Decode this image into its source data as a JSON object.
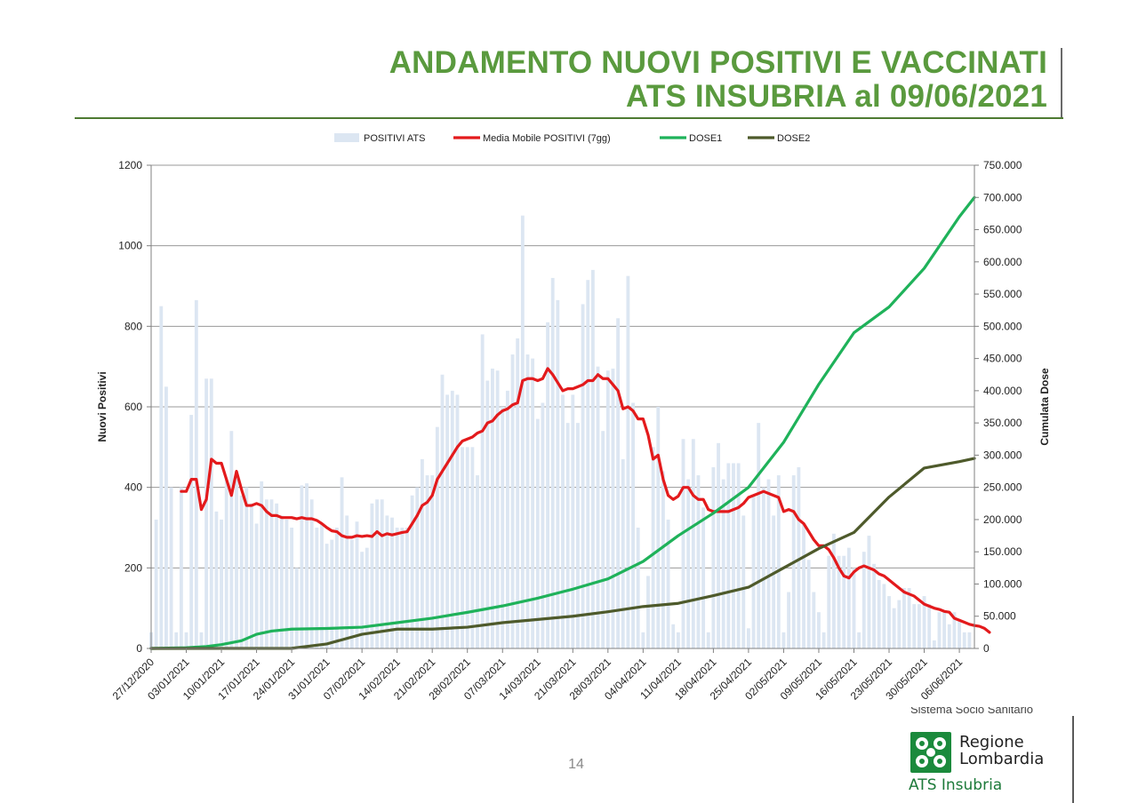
{
  "title": {
    "line1": "ANDAMENTO NUOVI POSITIVI E VACCINATI",
    "line2": "ATS INSUBRIA al 09/06/2021"
  },
  "page_number": "14",
  "logo": {
    "top_text": "Sistema Socio Sanitario",
    "name_line1": "Regione",
    "name_line2": "Lombardia",
    "agency": "ATS Insubria"
  },
  "colors": {
    "title": "#5a9a3e",
    "bars": "#dce6f2",
    "moving_avg": "#e31a1c",
    "dose1": "#1fb25a",
    "dose2": "#4e5a2b",
    "logo": "#1b8a3c"
  },
  "chart_data": {
    "type": "bar+line",
    "title": "",
    "xlabel": "",
    "ylabel": "Nuovi Positivi",
    "y2label": "Cumulata Dose",
    "ylim": [
      0,
      1200
    ],
    "y2lim": [
      0,
      750000
    ],
    "grid": true,
    "legend_position": "top",
    "x_start": "27/12/2020",
    "x_end": "09/06/2021",
    "x_tick_labels": [
      "27/12/2020",
      "03/01/2021",
      "10/01/2021",
      "17/01/2021",
      "24/01/2021",
      "31/01/2021",
      "07/02/2021",
      "14/02/2021",
      "21/02/2021",
      "28/02/2021",
      "07/03/2021",
      "14/03/2021",
      "21/03/2021",
      "28/03/2021",
      "04/04/2021",
      "11/04/2021",
      "18/04/2021",
      "25/04/2021",
      "02/05/2021",
      "09/05/2021",
      "16/05/2021",
      "23/05/2021",
      "30/05/2021",
      "06/06/2021"
    ],
    "y_tick_labels": [
      "0",
      "200",
      "400",
      "600",
      "800",
      "1000",
      "1200"
    ],
    "y2_tick_labels": [
      "0",
      "50.000",
      "100.000",
      "150.000",
      "200.000",
      "250.000",
      "300.000",
      "350.000",
      "400.000",
      "450.000",
      "500.000",
      "550.000",
      "600.000",
      "650.000",
      "700.000",
      "750.000"
    ],
    "series": [
      {
        "name": "POSITIVI ATS",
        "kind": "bar",
        "axis": "left",
        "first_date": "27/12/2020",
        "values": [
          40,
          320,
          850,
          650,
          400,
          40,
          400,
          40,
          580,
          865,
          40,
          670,
          670,
          340,
          320,
          420,
          540,
          440,
          380,
          400,
          360,
          310,
          415,
          370,
          370,
          360,
          330,
          320,
          300,
          200,
          405,
          410,
          370,
          300,
          310,
          260,
          270,
          300,
          425,
          330,
          270,
          315,
          240,
          250,
          360,
          370,
          370,
          330,
          325,
          300,
          300,
          300,
          380,
          400,
          470,
          430,
          430,
          550,
          680,
          630,
          640,
          630,
          500,
          500,
          500,
          430,
          780,
          665,
          695,
          690,
          600,
          640,
          730,
          770,
          1075,
          730,
          720,
          570,
          610,
          810,
          920,
          865,
          630,
          560,
          630,
          560,
          855,
          915,
          940,
          700,
          540,
          690,
          695,
          820,
          470,
          925,
          610,
          300,
          40,
          180,
          500,
          600,
          440,
          320,
          60,
          40,
          520,
          420,
          520,
          430,
          350,
          40,
          450,
          510,
          420,
          460,
          460,
          460,
          330,
          50,
          380,
          560,
          400,
          420,
          330,
          430,
          40,
          140,
          430,
          450,
          310,
          220,
          140,
          90,
          40,
          230,
          285,
          230,
          230,
          250,
          200,
          40,
          240,
          280,
          210,
          170,
          160,
          130,
          100,
          120,
          150,
          150,
          110,
          110,
          130,
          110,
          20,
          90,
          90,
          60,
          90,
          70,
          40,
          40
        ]
      },
      {
        "name": "Media Mobile POSITIVI (7gg)",
        "kind": "line",
        "axis": "left",
        "first_date": "02/01/2021",
        "values": [
          390,
          390,
          420,
          420,
          345,
          370,
          470,
          460,
          460,
          420,
          380,
          440,
          395,
          355,
          355,
          360,
          355,
          340,
          330,
          330,
          325,
          325,
          325,
          322,
          325,
          322,
          322,
          318,
          310,
          300,
          292,
          290,
          280,
          276,
          276,
          280,
          278,
          280,
          278,
          290,
          280,
          285,
          282,
          285,
          288,
          290,
          310,
          330,
          355,
          363,
          380,
          420,
          440,
          460,
          480,
          500,
          515,
          520,
          525,
          535,
          540,
          560,
          565,
          580,
          590,
          595,
          605,
          610,
          665,
          670,
          670,
          665,
          670,
          695,
          680,
          660,
          640,
          645,
          645,
          650,
          655,
          665,
          665,
          680,
          670,
          670,
          655,
          640,
          595,
          600,
          590,
          570,
          570,
          530,
          470,
          480,
          420,
          380,
          370,
          378,
          400,
          400,
          380,
          370,
          370,
          345,
          340,
          340,
          340,
          340,
          345,
          350,
          360,
          375,
          380,
          385,
          390,
          385,
          380,
          375,
          340,
          345,
          340,
          320,
          310,
          290,
          270,
          255,
          255,
          245,
          225,
          200,
          180,
          175,
          190,
          200,
          205,
          200,
          195,
          185,
          180,
          170,
          160,
          150,
          140,
          135,
          130,
          120,
          110,
          105,
          100,
          97,
          92,
          90,
          75,
          70,
          65,
          60,
          57,
          55,
          50,
          40
        ]
      },
      {
        "name": "DOSE1",
        "kind": "line",
        "axis": "right",
        "first_date": "27/12/2020",
        "points": [
          [
            "27/12/2020",
            0
          ],
          [
            "03/01/2021",
            1000
          ],
          [
            "07/01/2021",
            3000
          ],
          [
            "10/01/2021",
            6000
          ],
          [
            "14/01/2021",
            12000
          ],
          [
            "17/01/2021",
            22000
          ],
          [
            "20/01/2021",
            27000
          ],
          [
            "24/01/2021",
            30000
          ],
          [
            "31/01/2021",
            31000
          ],
          [
            "07/02/2021",
            33000
          ],
          [
            "14/02/2021",
            40000
          ],
          [
            "21/02/2021",
            47000
          ],
          [
            "28/02/2021",
            56000
          ],
          [
            "07/03/2021",
            66000
          ],
          [
            "14/03/2021",
            78000
          ],
          [
            "21/03/2021",
            92000
          ],
          [
            "28/03/2021",
            108000
          ],
          [
            "04/04/2021",
            135000
          ],
          [
            "11/04/2021",
            175000
          ],
          [
            "18/04/2021",
            210000
          ],
          [
            "25/04/2021",
            250000
          ],
          [
            "02/05/2021",
            320000
          ],
          [
            "09/05/2021",
            410000
          ],
          [
            "16/05/2021",
            490000
          ],
          [
            "23/05/2021",
            530000
          ],
          [
            "30/05/2021",
            590000
          ],
          [
            "06/06/2021",
            670000
          ],
          [
            "09/06/2021",
            700000
          ]
        ]
      },
      {
        "name": "DOSE2",
        "kind": "line",
        "axis": "right",
        "first_date": "27/12/2020",
        "points": [
          [
            "27/12/2020",
            0
          ],
          [
            "24/01/2021",
            200
          ],
          [
            "31/01/2021",
            7000
          ],
          [
            "07/02/2021",
            22000
          ],
          [
            "14/02/2021",
            30000
          ],
          [
            "21/02/2021",
            30000
          ],
          [
            "28/02/2021",
            33000
          ],
          [
            "07/03/2021",
            40000
          ],
          [
            "14/03/2021",
            45000
          ],
          [
            "21/03/2021",
            50000
          ],
          [
            "28/03/2021",
            57000
          ],
          [
            "04/04/2021",
            65000
          ],
          [
            "11/04/2021",
            70000
          ],
          [
            "18/04/2021",
            82000
          ],
          [
            "25/04/2021",
            95000
          ],
          [
            "02/05/2021",
            125000
          ],
          [
            "09/05/2021",
            155000
          ],
          [
            "16/05/2021",
            180000
          ],
          [
            "23/05/2021",
            235000
          ],
          [
            "30/05/2021",
            280000
          ],
          [
            "06/06/2021",
            290000
          ],
          [
            "09/06/2021",
            295000
          ]
        ]
      }
    ]
  }
}
